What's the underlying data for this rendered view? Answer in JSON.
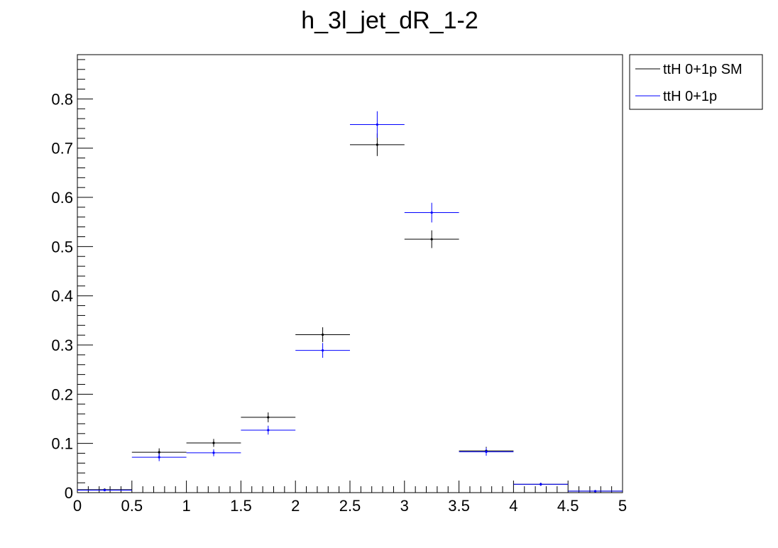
{
  "chart_data": {
    "type": "scatter",
    "title": "h_3l_jet_dR_1-2",
    "xlabel": "",
    "ylabel": "",
    "xlim": [
      0,
      5
    ],
    "ylim": [
      0,
      0.89
    ],
    "x_tick_labels": [
      "0",
      "0.5",
      "1",
      "1.5",
      "2",
      "2.5",
      "3",
      "3.5",
      "4",
      "4.5",
      "5"
    ],
    "x_tick_values": [
      0,
      0.5,
      1,
      1.5,
      2,
      2.5,
      3,
      3.5,
      4,
      4.5,
      5
    ],
    "y_tick_labels": [
      "0",
      "0.1",
      "0.2",
      "0.3",
      "0.4",
      "0.5",
      "0.6",
      "0.7",
      "0.8"
    ],
    "y_tick_values": [
      0,
      0.1,
      0.2,
      0.3,
      0.4,
      0.5,
      0.6,
      0.7,
      0.8
    ],
    "grid": false,
    "legend_position": "top-right, outside plot",
    "bin_edges": [
      0,
      0.5,
      1,
      1.5,
      2,
      2.5,
      3,
      3.5,
      4,
      4.5,
      5
    ],
    "series": [
      {
        "name": "ttH 0+1p SM",
        "color": "#000000",
        "values": [
          0.006,
          0.082,
          0.101,
          0.153,
          0.321,
          0.707,
          0.515,
          0.085,
          0.017,
          0.003
        ],
        "errors": [
          0.002,
          0.008,
          0.008,
          0.01,
          0.015,
          0.023,
          0.018,
          0.008,
          0.003,
          0.001
        ]
      },
      {
        "name": "ttH 0+1p",
        "color": "#0000ff",
        "values": [
          0.005,
          0.072,
          0.081,
          0.127,
          0.289,
          0.748,
          0.569,
          0.083,
          0.017,
          0.003
        ],
        "errors": [
          0.002,
          0.008,
          0.007,
          0.009,
          0.015,
          0.027,
          0.02,
          0.008,
          0.003,
          0.001
        ]
      }
    ]
  }
}
